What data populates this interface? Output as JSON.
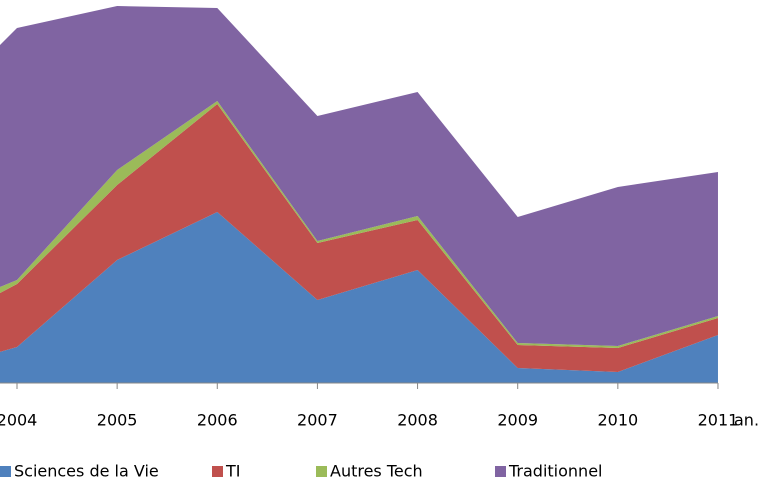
{
  "chart_data": {
    "type": "stacked_area",
    "categories": [
      null,
      "2004",
      "2005",
      "2006",
      "2007",
      "2008",
      "2009",
      "2010",
      "2011"
    ],
    "x_label": "an.",
    "ylim": [
      0,
      383
    ],
    "series": [
      {
        "name": "Sciences de la Vie",
        "color": "#4f81bd",
        "values": [
          7,
          36,
          123,
          171,
          83,
          113,
          15,
          11,
          48
        ]
      },
      {
        "name": "TI",
        "color": "#c0504d",
        "values": [
          39,
          63,
          75,
          108,
          57,
          50,
          23,
          24,
          17
        ]
      },
      {
        "name": "Autres Tech",
        "color": "#9bbb59",
        "values": [
          16,
          4,
          15,
          3,
          2,
          4,
          2,
          2,
          2
        ]
      },
      {
        "name": "Traditionnel",
        "color": "#8064a2",
        "values": [
          193,
          252,
          164,
          93,
          125,
          124,
          126,
          159,
          144
        ]
      }
    ]
  }
}
